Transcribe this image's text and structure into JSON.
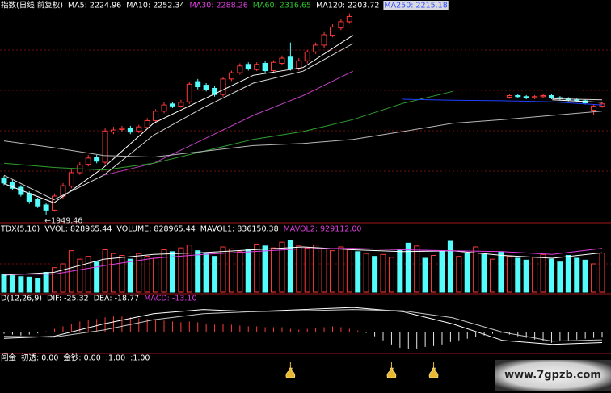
{
  "chart_data": [
    {
      "type": "candlestick",
      "header": [
        {
          "text": "指数(日线 前复权)",
          "color": "#ffffff"
        },
        {
          "text": "MA5: 2224.96",
          "color": "#ffffff"
        },
        {
          "text": "MA10: 2252.34",
          "color": "#ffffff"
        },
        {
          "text": "MA30: 2288.26",
          "color": "#e040e0"
        },
        {
          "text": "MA60: 2316.65",
          "color": "#30c030"
        },
        {
          "text": "MA120: 2203.72",
          "color": "#ffffff"
        },
        {
          "text": "MA250: 2215.18",
          "color": "#3050ff",
          "background": "#d8d8e0"
        }
      ],
      "ylim": [
        1940,
        2340
      ],
      "up_color": "#ff3a3a",
      "down_color": "#54fcfc",
      "open": [
        2020,
        2012,
        2002,
        1990,
        1978,
        1968,
        1958,
        1985,
        2004,
        2030,
        2046,
        2060,
        2050,
        2108,
        2113,
        2116,
        2110,
        2117,
        2130,
        2148,
        2162,
        2158,
        2166,
        2205,
        2198,
        2192,
        2180,
        2210,
        2222,
        2238,
        2228,
        2240,
        2226,
        2240,
        2252,
        2230,
        2245,
        2262,
        2275,
        2294,
        2308,
        2320,
        null,
        null,
        null,
        null,
        null,
        null,
        null,
        null,
        null,
        null,
        null,
        null,
        null,
        null,
        null,
        null,
        null,
        null,
        2175,
        2178,
        2176,
        2174,
        2176,
        2178,
        2174,
        2172,
        2170,
        2168,
        2150,
        2158
      ],
      "high": [
        2024,
        2016,
        2006,
        1994,
        1982,
        1972,
        1990,
        2010,
        2036,
        2050,
        2064,
        2064,
        2115,
        2118,
        2120,
        2120,
        2122,
        2135,
        2152,
        2165,
        2166,
        2170,
        2205,
        2210,
        2202,
        2196,
        2214,
        2226,
        2240,
        2242,
        2242,
        2244,
        2246,
        2255,
        2280,
        2250,
        2266,
        2280,
        2300,
        2315,
        2325,
        2336,
        null,
        null,
        null,
        null,
        null,
        null,
        null,
        null,
        null,
        null,
        null,
        null,
        null,
        null,
        null,
        null,
        null,
        null,
        2181,
        2181,
        2179,
        2179,
        2181,
        2181,
        2177,
        2175,
        2173,
        2171,
        2161,
        2165
      ],
      "low": [
        2006,
        1996,
        1984,
        1970,
        1962,
        1949.46,
        1955,
        1980,
        2000,
        2026,
        2042,
        2048,
        2046,
        2104,
        2108,
        2104,
        2106,
        2114,
        2126,
        2144,
        2154,
        2155,
        2162,
        2190,
        2186,
        2176,
        2176,
        2206,
        2218,
        2226,
        2225,
        2222,
        2222,
        2236,
        2226,
        2226,
        2240,
        2258,
        2270,
        2290,
        2304,
        2316,
        null,
        null,
        null,
        null,
        null,
        null,
        null,
        null,
        null,
        null,
        null,
        null,
        null,
        null,
        null,
        null,
        null,
        null,
        2172,
        2173,
        2171,
        2171,
        2173,
        2171,
        2169,
        2167,
        2165,
        2161,
        2140,
        2155
      ],
      "close": [
        2010,
        2000,
        1988,
        1975,
        1966,
        1958,
        1985,
        2005,
        2030,
        2045,
        2058,
        2052,
        2110,
        2112,
        2115,
        2108,
        2118,
        2130,
        2148,
        2160,
        2158,
        2165,
        2200,
        2195,
        2190,
        2180,
        2210,
        2222,
        2235,
        2230,
        2238,
        2226,
        2242,
        2250,
        2230,
        2245,
        2262,
        2275,
        2295,
        2310,
        2320,
        2330,
        null,
        null,
        null,
        null,
        null,
        null,
        null,
        null,
        null,
        null,
        null,
        null,
        null,
        null,
        null,
        null,
        null,
        null,
        2178,
        2176,
        2174,
        2176,
        2178,
        2174,
        2172,
        2170,
        2168,
        2164,
        2158,
        2162
      ],
      "low_annotation": "←1949.46",
      "lines": [
        {
          "color": "#ffffff",
          "values": [
            2009,
            1972,
            2040,
            2125,
            2171,
            2217,
            2232,
            2294,
            null,
            null,
            null,
            2170,
            2165
          ]
        },
        {
          "color": "#d8d8d8",
          "values": [
            2025,
            1978,
            2025,
            2102,
            2155,
            2202,
            2225,
            2278,
            null,
            null,
            null,
            2172,
            2170
          ]
        },
        {
          "color": "#c040c0",
          "values": [
            null,
            null,
            2025,
            2048,
            2094,
            2140,
            2178,
            2225,
            null,
            null,
            null,
            null,
            null
          ]
        },
        {
          "color": "#30a030",
          "values": [
            2048,
            2040,
            2035,
            2048,
            2071,
            2094,
            2109,
            2132,
            2163,
            2186,
            null,
            null,
            null
          ]
        },
        {
          "color": "#b8b8b8",
          "values": [
            2091,
            2078,
            2063,
            2060,
            2071,
            2082,
            2086,
            2094,
            2109,
            2125,
            2132,
            2140,
            2148
          ]
        },
        {
          "color": "#2040ff",
          "values": [
            null,
            null,
            null,
            null,
            null,
            null,
            null,
            null,
            2171,
            2169,
            2168,
            2166,
            2160
          ]
        }
      ]
    },
    {
      "type": "bar",
      "header": [
        {
          "text": "TDX(5,10)",
          "color": "#ffffff"
        },
        {
          "text": "VVOL: 828965.44",
          "color": "#ffffff"
        },
        {
          "text": "VOLUME: 828965.44",
          "color": "#ffffff"
        },
        {
          "text": "MAVOL1: 836150.38",
          "color": "#ffffff"
        },
        {
          "text": "MAVOL2: 929112.00",
          "color": "#e040e0"
        }
      ],
      "ylim": [
        0,
        1200000
      ],
      "up_color": "#ff3a3a",
      "down_color": "#54fcfc",
      "values": [
        380000,
        350000,
        330000,
        320000,
        300000,
        420000,
        520000,
        600000,
        880000,
        700000,
        760000,
        640000,
        900000,
        820000,
        780000,
        700000,
        820000,
        760000,
        720000,
        900000,
        860000,
        940000,
        1000000,
        880000,
        820000,
        760000,
        960000,
        920000,
        860000,
        900000,
        1020000,
        980000,
        940000,
        1060000,
        1100000,
        980000,
        940000,
        1000000,
        920000,
        880000,
        960000,
        900000,
        860000,
        820000,
        760000,
        800000,
        740000,
        900000,
        1040000,
        980000,
        720000,
        780000,
        880000,
        1080000,
        760000,
        820000,
        960000,
        800000,
        700000,
        860000,
        760000,
        720000,
        680000,
        740000,
        800000,
        700000,
        640000,
        780000,
        720000,
        680000,
        600000,
        828965.44
      ],
      "rising": [
        false,
        false,
        false,
        false,
        false,
        false,
        true,
        true,
        true,
        true,
        true,
        false,
        true,
        true,
        true,
        false,
        true,
        true,
        true,
        true,
        false,
        true,
        true,
        false,
        false,
        false,
        true,
        true,
        true,
        false,
        true,
        false,
        true,
        true,
        false,
        true,
        true,
        true,
        true,
        true,
        true,
        true,
        false,
        true,
        false,
        true,
        true,
        false,
        false,
        true,
        false,
        true,
        false,
        false,
        true,
        false,
        true,
        false,
        true,
        false,
        true,
        false,
        false,
        true,
        true,
        false,
        false,
        false,
        false,
        false,
        true,
        true
      ],
      "lines": [
        {
          "color": "#ffffff",
          "values": [
            360000,
            420000,
            700000,
            800000,
            840000,
            900000,
            960000,
            900000,
            860000,
            880000,
            780000,
            720000,
            836150.38
          ]
        },
        {
          "color": "#e040e0",
          "values": [
            380000,
            380000,
            560000,
            720000,
            800000,
            860000,
            920000,
            930000,
            900000,
            880000,
            860000,
            800000,
            929112
          ]
        }
      ]
    },
    {
      "type": "bar",
      "header": [
        {
          "text": "D(12,26,9)",
          "color": "#ffffff"
        },
        {
          "text": "DIF: -25.32",
          "color": "#ffffff"
        },
        {
          "text": "DEA: -18.77",
          "color": "#ffffff"
        },
        {
          "text": "MACD: -13.10",
          "color": "#e040e0"
        }
      ],
      "ylim": [
        -50,
        70
      ],
      "up_color": "#ff3a3a",
      "down_color": "#e8e8e8",
      "values": [
        -4,
        -6,
        -8,
        -6,
        -3,
        2,
        8,
        14,
        20,
        26,
        30,
        32,
        36,
        38,
        38,
        36,
        34,
        32,
        30,
        28,
        26,
        24,
        26,
        24,
        20,
        18,
        20,
        18,
        16,
        14,
        14,
        12,
        12,
        12,
        8,
        6,
        8,
        10,
        12,
        14,
        12,
        8,
        4,
        -2,
        -10,
        -20,
        -30,
        -38,
        -42,
        -40,
        -36,
        -34,
        -30,
        -24,
        -20,
        -16,
        -12,
        -8,
        -4,
        -2,
        -6,
        -10,
        -14,
        -18,
        -22,
        -26,
        -22,
        -20,
        -18,
        -16,
        -14,
        -13.1
      ],
      "lines": [
        {
          "color": "#ffffff",
          "values": [
            -15,
            -10,
            20,
            45,
            55,
            50,
            55,
            60,
            50,
            20,
            -20,
            -30,
            -25.32
          ]
        },
        {
          "color": "#c8c8c8",
          "values": [
            -10,
            -12,
            5,
            30,
            45,
            50,
            52,
            55,
            52,
            35,
            0,
            -22,
            -18.77
          ]
        }
      ]
    },
    {
      "type": "signal",
      "header": [
        {
          "text": "闯金",
          "color": "#ffffff"
        },
        {
          "text": "初透: 0.00",
          "color": "#ffffff"
        },
        {
          "text": "金钞: 0.00",
          "color": "#ffffff"
        },
        {
          "text": ":1.00",
          "color": "#ffffff"
        },
        {
          "text": ":1.00",
          "color": "#ffffff"
        }
      ],
      "color": "#e8b830",
      "signals": [
        34,
        46,
        51
      ]
    }
  ],
  "watermark": "www.7gpzb.com"
}
